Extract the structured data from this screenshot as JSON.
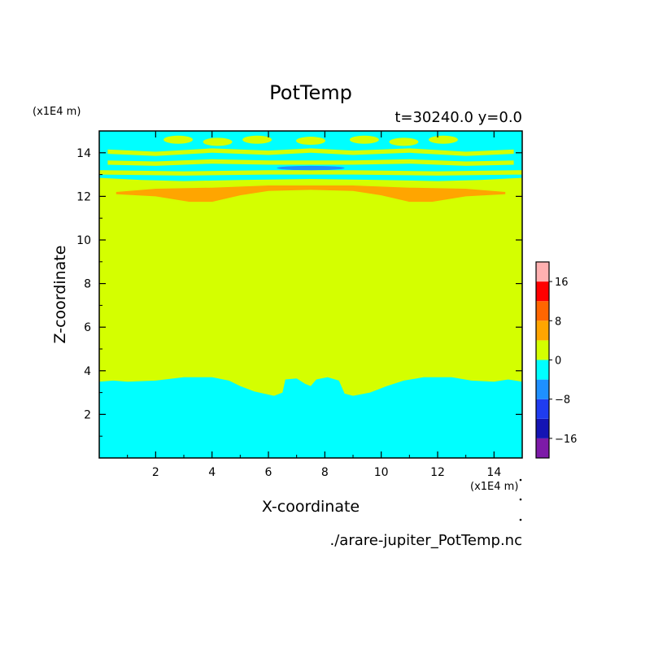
{
  "chart_data": {
    "type": "heatmap",
    "title": "PotTemp",
    "subtitle": "t=30240.0 y=0.0",
    "xlabel": "X-coordinate",
    "ylabel": "Z-coordinate",
    "x_unit": "(x1E4 m)",
    "y_unit": "(x1E4 m)",
    "xlim": [
      0,
      15
    ],
    "ylim": [
      0,
      15
    ],
    "x_ticks": [
      2,
      4,
      6,
      8,
      10,
      12,
      14
    ],
    "y_ticks": [
      2,
      4,
      6,
      8,
      10,
      12,
      14
    ],
    "source_file": "./arare-jupiter_PotTemp.nc",
    "colorbar": {
      "levels": [
        -20,
        -16,
        -12,
        -8,
        -4,
        0,
        4,
        8,
        12,
        16,
        20
      ],
      "colors": [
        "#7d1aa8",
        "#1414b4",
        "#1f3cf0",
        "#1e90ff",
        "#00ffff",
        "#d4ff00",
        "#ffa500",
        "#ff6600",
        "#ff0000",
        "#ffb0b0"
      ],
      "tick_labels": [
        {
          "value": 16,
          "label": "16"
        },
        {
          "value": 8,
          "label": "8"
        },
        {
          "value": 0,
          "label": "0"
        },
        {
          "value": -8,
          "label": "−8"
        },
        {
          "value": -16,
          "label": "−16"
        }
      ]
    },
    "regions": [
      {
        "name": "background",
        "range": "0 to 4",
        "color": "#d4ff00"
      },
      {
        "name": "lower cold layer",
        "range": "-4 to 0",
        "color": "#00ffff",
        "boundary": [
          [
            0,
            3.5
          ],
          [
            0.5,
            3.55
          ],
          [
            1,
            3.5
          ],
          [
            2,
            3.55
          ],
          [
            3,
            3.7
          ],
          [
            4,
            3.7
          ],
          [
            4.6,
            3.55
          ],
          [
            5,
            3.3
          ],
          [
            5.5,
            3.05
          ],
          [
            6.2,
            2.85
          ],
          [
            6.5,
            3.0
          ],
          [
            6.6,
            3.6
          ],
          [
            7,
            3.65
          ],
          [
            7.3,
            3.4
          ],
          [
            7.5,
            3.3
          ],
          [
            7.7,
            3.6
          ],
          [
            8.1,
            3.7
          ],
          [
            8.5,
            3.55
          ],
          [
            8.7,
            2.95
          ],
          [
            9,
            2.85
          ],
          [
            9.6,
            3.0
          ],
          [
            10.2,
            3.3
          ],
          [
            10.8,
            3.55
          ],
          [
            11.5,
            3.7
          ],
          [
            12.5,
            3.7
          ],
          [
            13.2,
            3.55
          ],
          [
            14,
            3.5
          ],
          [
            14.5,
            3.6
          ],
          [
            15,
            3.5
          ]
        ]
      },
      {
        "name": "warm band",
        "range": "4 to 8",
        "color": "#ffa500",
        "upper": [
          [
            0.6,
            12.2
          ],
          [
            2,
            12.35
          ],
          [
            4,
            12.4
          ],
          [
            6,
            12.5
          ],
          [
            7.5,
            12.5
          ],
          [
            9,
            12.5
          ],
          [
            11,
            12.4
          ],
          [
            13,
            12.35
          ],
          [
            14.4,
            12.2
          ]
        ],
        "lower": [
          [
            0.6,
            12.1
          ],
          [
            2,
            12.0
          ],
          [
            3.2,
            11.75
          ],
          [
            4,
            11.75
          ],
          [
            5,
            12.05
          ],
          [
            6,
            12.25
          ],
          [
            7.5,
            12.3
          ],
          [
            9,
            12.25
          ],
          [
            10,
            12.05
          ],
          [
            11,
            11.75
          ],
          [
            11.8,
            11.75
          ],
          [
            13,
            12.0
          ],
          [
            14.4,
            12.1
          ]
        ]
      },
      {
        "name": "upper cold layer",
        "range": "-4 to 0",
        "color": "#00ffff",
        "upper": [
          [
            0,
            15
          ],
          [
            15,
            15
          ]
        ],
        "lower": [
          [
            0,
            12.85
          ],
          [
            1.5,
            12.75
          ],
          [
            3,
            12.7
          ],
          [
            5,
            12.75
          ],
          [
            7.5,
            12.8
          ],
          [
            10,
            12.75
          ],
          [
            12,
            12.7
          ],
          [
            13.5,
            12.75
          ],
          [
            15,
            12.85
          ]
        ]
      },
      {
        "name": "upper cold core",
        "range": "-8 to -4",
        "color": "#1e90ff",
        "center": [
          7.5,
          13.3
        ],
        "half_width": 1.2,
        "half_height": 0.1
      }
    ]
  }
}
